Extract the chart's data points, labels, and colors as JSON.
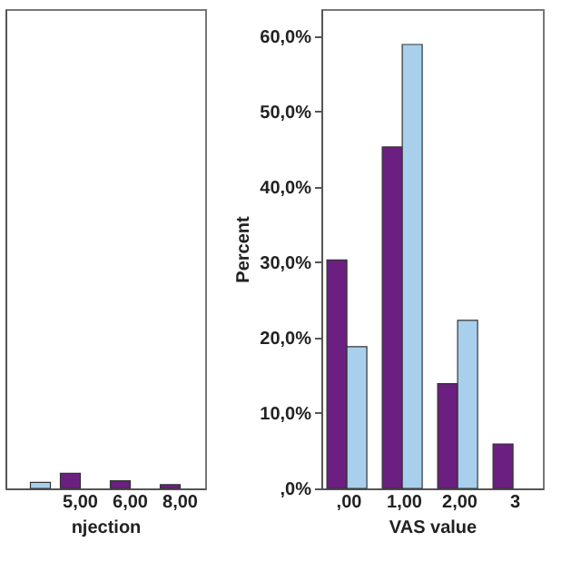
{
  "chart_data": [
    {
      "type": "bar",
      "xlabel": "njection",
      "categories": [
        null,
        "5,00",
        "6,00",
        "8,00"
      ],
      "series": [
        {
          "color": "#6b1f80",
          "values": [
            null,
            2.0,
            1.0,
            0.5
          ]
        },
        {
          "color": "#a8d0ec",
          "values": [
            0.8,
            null,
            null,
            null
          ]
        }
      ],
      "ylim": [
        0,
        63.6
      ],
      "tick_labels": "x",
      "grid": false,
      "legend": false
    },
    {
      "type": "bar",
      "xlabel": "VAS value",
      "ylabel": "Percent",
      "categories": [
        ",00",
        "1,00",
        "2,00",
        "3"
      ],
      "series": [
        {
          "color": "#6b1f80",
          "values": [
            30.3,
            45.3,
            13.9,
            5.9
          ]
        },
        {
          "color": "#a8d0ec",
          "values": [
            18.8,
            58.9,
            22.3,
            null
          ]
        }
      ],
      "ylim": [
        0,
        63.6
      ],
      "yticks": [
        {
          "value": 0,
          "label": ",0%"
        },
        {
          "value": 10,
          "label": "10,0%"
        },
        {
          "value": 20,
          "label": "20,0%"
        },
        {
          "value": 30,
          "label": "30,0%"
        },
        {
          "value": 40,
          "label": "40,0%"
        },
        {
          "value": 50,
          "label": "50,0%"
        },
        {
          "value": 60,
          "label": "60,0%"
        }
      ],
      "grid": false,
      "legend": false
    }
  ]
}
